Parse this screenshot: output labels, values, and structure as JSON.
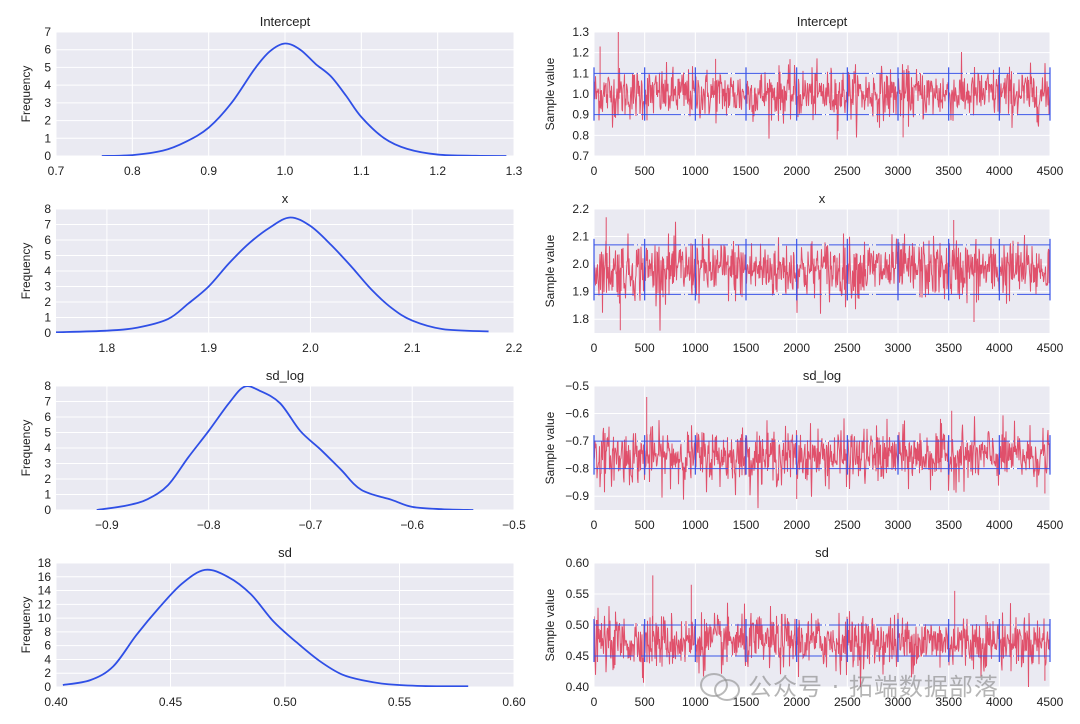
{
  "watermark": {
    "text": "公众号 · 拓端数据部落"
  },
  "colors": {
    "density": "#2f4fe6",
    "trace": "#e0506b",
    "trace_band": "#3a55e8",
    "panel": "#eaeaf2",
    "grid": "#ffffff",
    "text": "#222222"
  },
  "chart_data": [
    {
      "type": "line",
      "kind": "density",
      "title": "Intercept",
      "xlabel": "",
      "ylabel": "Frequency",
      "xlim": [
        0.7,
        1.3
      ],
      "ylim": [
        0,
        7
      ],
      "xticks": [
        0.7,
        0.8,
        0.9,
        1.0,
        1.1,
        1.2,
        1.3
      ],
      "xtick_labels": [
        "0.7",
        "0.8",
        "0.9",
        "1.0",
        "1.1",
        "1.2",
        "1.3"
      ],
      "yticks": [
        0,
        1,
        2,
        3,
        4,
        5,
        6,
        7
      ],
      "ytick_labels": [
        "0",
        "1",
        "2",
        "3",
        "4",
        "5",
        "6",
        "7"
      ],
      "x": [
        0.76,
        0.8,
        0.84,
        0.87,
        0.9,
        0.93,
        0.96,
        0.98,
        1.0,
        1.02,
        1.04,
        1.06,
        1.08,
        1.1,
        1.13,
        1.16,
        1.2,
        1.25,
        1.29
      ],
      "y": [
        0.0,
        0.05,
        0.3,
        0.8,
        1.6,
        3.0,
        4.9,
        5.9,
        6.35,
        6.0,
        5.2,
        4.5,
        3.4,
        2.2,
        1.0,
        0.4,
        0.08,
        0.01,
        0.0
      ]
    },
    {
      "type": "line",
      "kind": "trace",
      "title": "Intercept",
      "xlabel": "",
      "ylabel": "Sample value",
      "xlim": [
        0,
        4500
      ],
      "ylim": [
        0.7,
        1.3
      ],
      "xticks": [
        0,
        500,
        1000,
        1500,
        2000,
        2500,
        3000,
        3500,
        4000,
        4500
      ],
      "xtick_labels": [
        "0",
        "500",
        "1000",
        "1500",
        "2000",
        "2500",
        "3000",
        "3500",
        "4000",
        "4500"
      ],
      "yticks": [
        0.7,
        0.8,
        0.9,
        1.0,
        1.1,
        1.2,
        1.3
      ],
      "ytick_labels": [
        "0.7",
        "0.8",
        "0.9",
        "1.0",
        "1.1",
        "1.2",
        "1.3"
      ],
      "n_samples": 4500,
      "center": 1.0,
      "spread": 0.062,
      "band": [
        0.9,
        1.1
      ],
      "extremes": [
        [
          240,
          1.3
        ],
        [
          60,
          1.23
        ],
        [
          2400,
          0.78
        ],
        [
          1200,
          1.17
        ],
        [
          3050,
          0.79
        ]
      ]
    },
    {
      "type": "line",
      "kind": "density",
      "title": "x",
      "xlabel": "",
      "ylabel": "Frequency",
      "xlim": [
        1.75,
        2.2
      ],
      "ylim": [
        0,
        8
      ],
      "xticks": [
        1.8,
        1.9,
        2.0,
        2.1,
        2.2
      ],
      "xtick_labels": [
        "1.8",
        "1.9",
        "2.0",
        "2.1",
        "2.2"
      ],
      "yticks": [
        0,
        1,
        2,
        3,
        4,
        5,
        6,
        7,
        8
      ],
      "ytick_labels": [
        "0",
        "1",
        "2",
        "3",
        "4",
        "5",
        "6",
        "7",
        "8"
      ],
      "x": [
        1.75,
        1.8,
        1.83,
        1.86,
        1.88,
        1.9,
        1.92,
        1.94,
        1.96,
        1.98,
        2.0,
        2.02,
        2.04,
        2.06,
        2.08,
        2.1,
        2.13,
        2.175
      ],
      "y": [
        0.05,
        0.15,
        0.35,
        0.9,
        1.9,
        3.0,
        4.5,
        5.8,
        6.8,
        7.45,
        6.9,
        5.7,
        4.3,
        2.8,
        1.6,
        0.8,
        0.25,
        0.1
      ]
    },
    {
      "type": "line",
      "kind": "trace",
      "title": "x",
      "xlabel": "",
      "ylabel": "Sample value",
      "xlim": [
        0,
        4500
      ],
      "ylim": [
        1.75,
        2.2
      ],
      "xticks": [
        0,
        500,
        1000,
        1500,
        2000,
        2500,
        3000,
        3500,
        4000,
        4500
      ],
      "xtick_labels": [
        "0",
        "500",
        "1000",
        "1500",
        "2000",
        "2500",
        "3000",
        "3500",
        "4000",
        "4500"
      ],
      "yticks": [
        1.8,
        1.9,
        2.0,
        2.1,
        2.2
      ],
      "ytick_labels": [
        "1.8",
        "1.9",
        "2.0",
        "2.1",
        "2.2"
      ],
      "n_samples": 4500,
      "center": 1.98,
      "spread": 0.055,
      "band": [
        1.89,
        2.07
      ],
      "extremes": [
        [
          260,
          1.76
        ],
        [
          3550,
          2.16
        ],
        [
          120,
          2.17
        ],
        [
          3750,
          1.79
        ]
      ]
    },
    {
      "type": "line",
      "kind": "density",
      "title": "sd_log",
      "xlabel": "",
      "ylabel": "Frequency",
      "xlim": [
        -0.95,
        -0.5
      ],
      "ylim": [
        0,
        8
      ],
      "xticks": [
        -0.9,
        -0.8,
        -0.7,
        -0.6,
        -0.5
      ],
      "xtick_labels": [
        "−0.9",
        "−0.8",
        "−0.7",
        "−0.6",
        "−0.5"
      ],
      "yticks": [
        0,
        1,
        2,
        3,
        4,
        5,
        6,
        7,
        8
      ],
      "ytick_labels": [
        "0",
        "1",
        "2",
        "3",
        "4",
        "5",
        "6",
        "7",
        "8"
      ],
      "x": [
        -0.91,
        -0.88,
        -0.86,
        -0.84,
        -0.82,
        -0.8,
        -0.78,
        -0.765,
        -0.75,
        -0.73,
        -0.71,
        -0.69,
        -0.67,
        -0.65,
        -0.62,
        -0.6,
        -0.57,
        -0.54
      ],
      "y": [
        0.0,
        0.3,
        0.7,
        1.6,
        3.4,
        5.1,
        6.9,
        7.95,
        7.7,
        6.9,
        5.1,
        3.9,
        2.6,
        1.3,
        0.65,
        0.2,
        0.05,
        0.0
      ]
    },
    {
      "type": "line",
      "kind": "trace",
      "title": "sd_log",
      "xlabel": "",
      "ylabel": "Sample value",
      "xlim": [
        0,
        4500
      ],
      "ylim": [
        -0.95,
        -0.5
      ],
      "xticks": [
        0,
        500,
        1000,
        1500,
        2000,
        2500,
        3000,
        3500,
        4000,
        4500
      ],
      "xtick_labels": [
        "0",
        "500",
        "1000",
        "1500",
        "2000",
        "2500",
        "3000",
        "3500",
        "4000",
        "4500"
      ],
      "yticks": [
        -0.9,
        -0.8,
        -0.7,
        -0.6,
        -0.5
      ],
      "ytick_labels": [
        "−0.9",
        "−0.8",
        "−0.7",
        "−0.6",
        "−0.5"
      ],
      "n_samples": 4500,
      "center": -0.755,
      "spread": 0.05,
      "band": [
        -0.8,
        -0.7
      ],
      "extremes": [
        [
          520,
          -0.54
        ],
        [
          3530,
          -0.59
        ],
        [
          2000,
          -0.91
        ],
        [
          4450,
          -0.89
        ]
      ]
    },
    {
      "type": "line",
      "kind": "density",
      "title": "sd",
      "xlabel": "",
      "ylabel": "Frequency",
      "xlim": [
        0.4,
        0.6
      ],
      "ylim": [
        0,
        18
      ],
      "xticks": [
        0.4,
        0.45,
        0.5,
        0.55,
        0.6
      ],
      "xtick_labels": [
        "0.40",
        "0.45",
        "0.50",
        "0.55",
        "0.60"
      ],
      "yticks": [
        0,
        2,
        4,
        6,
        8,
        10,
        12,
        14,
        16,
        18
      ],
      "ytick_labels": [
        "0",
        "2",
        "4",
        "6",
        "8",
        "10",
        "12",
        "14",
        "16",
        "18"
      ],
      "x": [
        0.403,
        0.415,
        0.425,
        0.435,
        0.445,
        0.455,
        0.465,
        0.475,
        0.485,
        0.495,
        0.505,
        0.515,
        0.525,
        0.535,
        0.545,
        0.56,
        0.58
      ],
      "y": [
        0.3,
        1.0,
        3.0,
        7.5,
        11.5,
        15.0,
        17.0,
        16.0,
        13.5,
        9.5,
        6.5,
        3.8,
        1.8,
        0.9,
        0.4,
        0.15,
        0.1
      ]
    },
    {
      "type": "line",
      "kind": "trace",
      "title": "sd",
      "xlabel": "",
      "ylabel": "Sample value",
      "xlim": [
        0,
        4500
      ],
      "ylim": [
        0.4,
        0.6
      ],
      "xticks": [
        0,
        500,
        1000,
        1500,
        2000,
        2500,
        3000,
        3500,
        4000,
        4500
      ],
      "xtick_labels": [
        "0",
        "500",
        "1000",
        "1500",
        "2000",
        "2500",
        "3000",
        "3500",
        "4000",
        "4500"
      ],
      "yticks": [
        0.4,
        0.45,
        0.5,
        0.55,
        0.6
      ],
      "ytick_labels": [
        "0.40",
        "0.45",
        "0.50",
        "0.55",
        "0.60"
      ],
      "n_samples": 4500,
      "center": 0.473,
      "spread": 0.022,
      "band": [
        0.45,
        0.5
      ],
      "extremes": [
        [
          580,
          0.58
        ],
        [
          3560,
          0.555
        ],
        [
          960,
          0.565
        ],
        [
          4450,
          0.41
        ]
      ]
    }
  ]
}
